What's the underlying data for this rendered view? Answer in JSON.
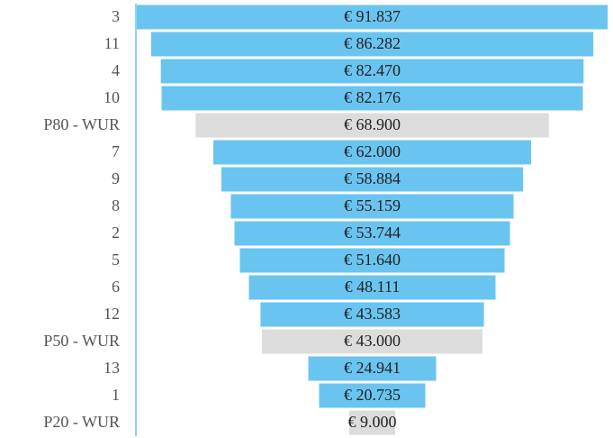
{
  "chart_data": {
    "type": "funnel",
    "categories": [
      "3",
      "11",
      "4",
      "10",
      "P80 - WUR",
      "7",
      "9",
      "8",
      "2",
      "5",
      "6",
      "12",
      "P50 - WUR",
      "13",
      "1",
      "P20 - WUR"
    ],
    "values": [
      91837,
      86282,
      82470,
      82176,
      68900,
      62000,
      58884,
      55159,
      53744,
      51640,
      48111,
      43583,
      43000,
      24941,
      20735,
      9000
    ],
    "value_labels": [
      "€ 91.837",
      "€ 86.282",
      "€ 82.470",
      "€ 82.176",
      "€ 68.900",
      "€ 62.000",
      "€ 58.884",
      "€ 55.159",
      "€ 53.744",
      "€ 51.640",
      "€ 48.111",
      "€ 43.583",
      "€ 43.000",
      "€ 24.941",
      "€ 20.735",
      "€ 9.000"
    ],
    "colors": [
      "#6ac4f0",
      "#6ac4f0",
      "#6ac4f0",
      "#6ac4f0",
      "#dcdcdc",
      "#6ac4f0",
      "#6ac4f0",
      "#6ac4f0",
      "#6ac4f0",
      "#6ac4f0",
      "#6ac4f0",
      "#6ac4f0",
      "#dcdcdc",
      "#6ac4f0",
      "#6ac4f0",
      "#dcdcdc"
    ]
  }
}
